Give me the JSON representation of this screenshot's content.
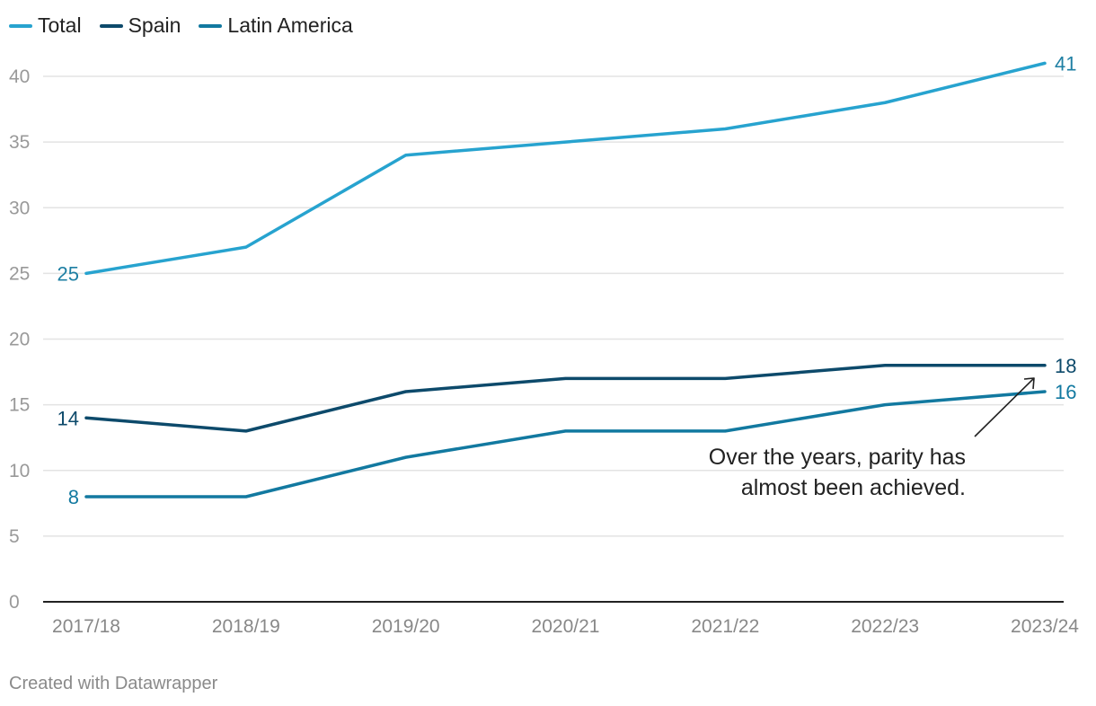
{
  "chart_data": {
    "type": "line",
    "categories": [
      "2017/18",
      "2018/19",
      "2019/20",
      "2020/21",
      "2021/22",
      "2022/23",
      "2023/24"
    ],
    "series": [
      {
        "name": "Total",
        "color": "#27a3cf",
        "values": [
          25,
          27,
          34,
          35,
          36,
          38,
          41
        ],
        "label_color": "#1e7fa3"
      },
      {
        "name": "Spain",
        "color": "#0d4a6b",
        "values": [
          14,
          13,
          16,
          17,
          17,
          18,
          18
        ],
        "label_color": "#0d4a6b"
      },
      {
        "name": "Latin America",
        "color": "#1279a0",
        "values": [
          8,
          8,
          11,
          13,
          13,
          15,
          16
        ],
        "label_color": "#1279a0"
      }
    ],
    "yticks": [
      0,
      5,
      10,
      15,
      20,
      25,
      30,
      35,
      40
    ],
    "ylim": [
      0,
      41
    ],
    "data_labels": [
      {
        "series": 0,
        "index": 0,
        "text": "25"
      },
      {
        "series": 0,
        "index": 6,
        "text": "41"
      },
      {
        "series": 1,
        "index": 0,
        "text": "14"
      },
      {
        "series": 1,
        "index": 6,
        "text": "18"
      },
      {
        "series": 2,
        "index": 0,
        "text": "8"
      },
      {
        "series": 2,
        "index": 6,
        "text": "16"
      }
    ],
    "annotation": {
      "lines": [
        "Over the years, parity has",
        "almost been achieved."
      ]
    }
  },
  "footer": "Created with Datawrapper"
}
